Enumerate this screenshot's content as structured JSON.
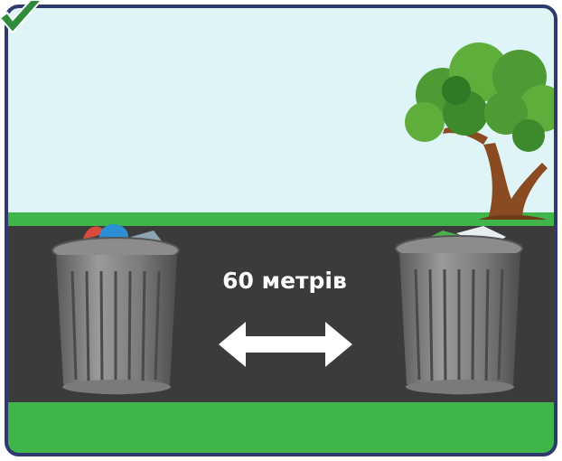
{
  "scene": {
    "distance_label": "60 метрів"
  }
}
